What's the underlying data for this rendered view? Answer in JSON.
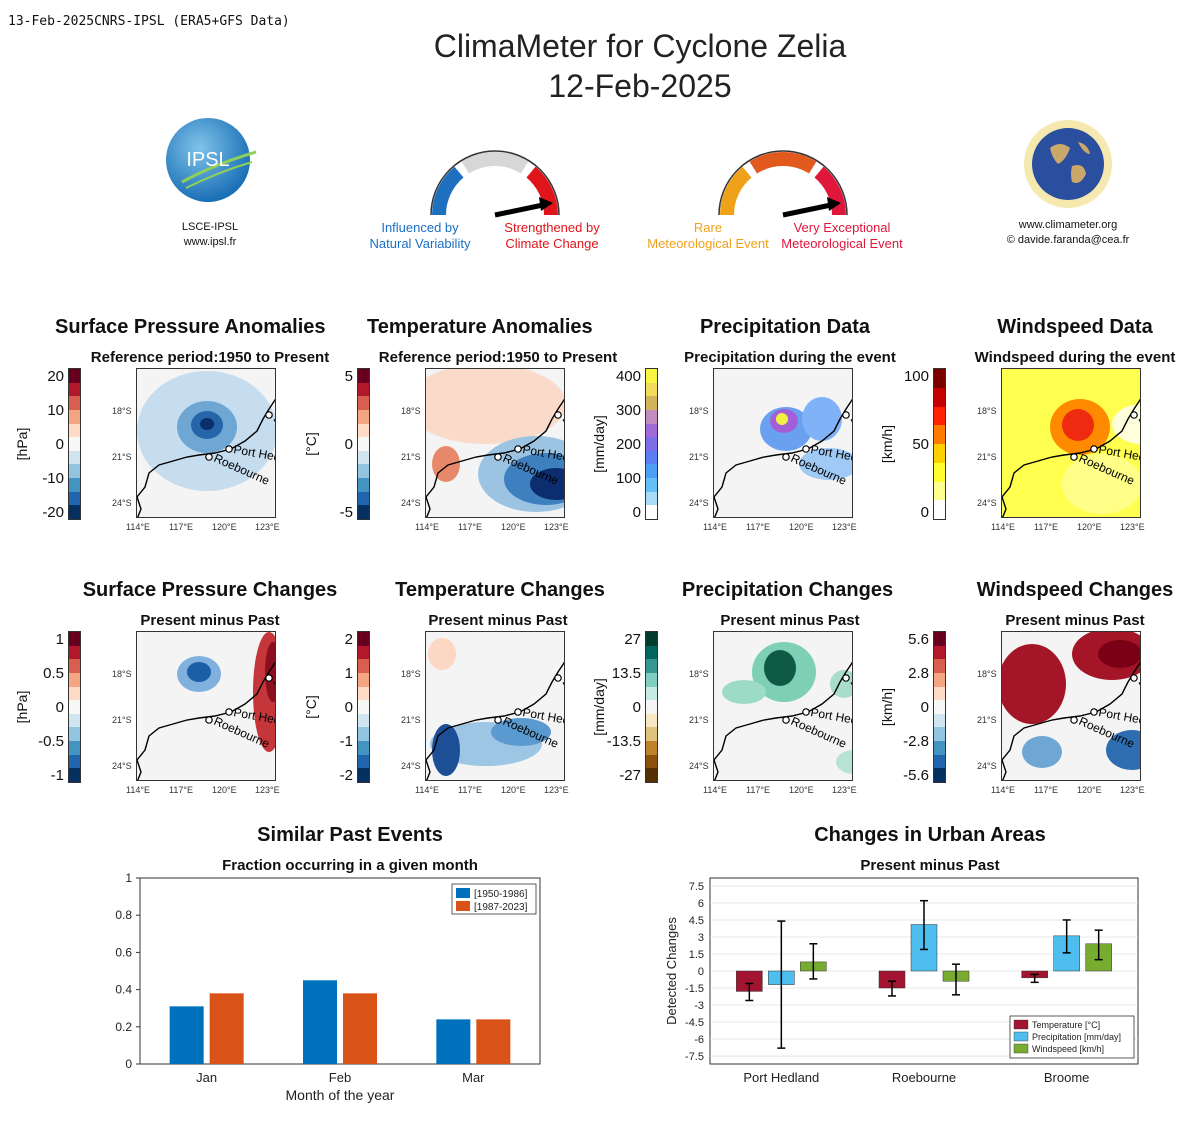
{
  "header_note": "13-Feb-2025CNRS-IPSL (ERA5+GFS Data)",
  "title_line1": "ClimaMeter for Cyclone Zelia",
  "title_line2": "12-Feb-2025",
  "logo_left": {
    "text": "IPSL",
    "caption1": "LSCE-IPSL",
    "caption2": "www.ipsl.fr"
  },
  "logo_right": {
    "caption1": "www.climameter.org",
    "caption2": "© davide.faranda@cea.fr"
  },
  "gauge1": {
    "left_label_1": "Influenced by",
    "left_label_2": "Natural Variability",
    "right_label_1": "Strengthened by",
    "right_label_2": "Climate Change",
    "colors": [
      "#1f6fbf",
      "#d7d7d7",
      "#e0141b"
    ]
  },
  "gauge2": {
    "left_label_1": "Rare",
    "left_label_2": "Meteorological Event",
    "right_label_1": "Very Exceptional",
    "right_label_2": "Meteorological Event",
    "colors": [
      "#f0a11a",
      "#e2591d",
      "#e0163b"
    ]
  },
  "map_ticks": {
    "lat": [
      "18°S",
      "21°S",
      "24°S"
    ],
    "lon": [
      "114°E",
      "117°E",
      "120°E",
      "123°E"
    ],
    "cities": [
      "Broome",
      "Port Hedland",
      "Roebourne"
    ]
  },
  "row1": [
    {
      "title": "Surface Pressure Anomalies",
      "subtitle": "Reference period:1950 to Present",
      "unit": "[hPa]",
      "ticks": [
        "20",
        "10",
        "0",
        "-10",
        "-20"
      ]
    },
    {
      "title": "Temperature Anomalies",
      "subtitle": "Reference period:1950 to Present",
      "unit": "[°C]",
      "ticks": [
        "5",
        "0",
        "-5"
      ]
    },
    {
      "title": "Precipitation Data",
      "subtitle": "Precipitation during the event",
      "unit": "[mm/day]",
      "ticks": [
        "400",
        "300",
        "200",
        "100",
        "0"
      ]
    },
    {
      "title": "Windspeed Data",
      "subtitle": "Windspeed during the event",
      "unit": "[km/h]",
      "ticks": [
        "100",
        "50",
        "0"
      ]
    }
  ],
  "row2": [
    {
      "title": "Surface Pressure Changes",
      "subtitle": "Present minus Past",
      "unit": "[hPa]",
      "ticks": [
        "1",
        "0.5",
        "0",
        "-0.5",
        "-1"
      ]
    },
    {
      "title": "Temperature Changes",
      "subtitle": "Present minus Past",
      "unit": "[°C]",
      "ticks": [
        "2",
        "1",
        "0",
        "-1",
        "-2"
      ]
    },
    {
      "title": "Precipitation Changes",
      "subtitle": "Present minus Past",
      "unit": "[mm/day]",
      "ticks": [
        "27",
        "13.5",
        "0",
        "-13.5",
        "-27"
      ]
    },
    {
      "title": "Windspeed Changes",
      "subtitle": "Present minus Past",
      "unit": "[km/h]",
      "ticks": [
        "5.6",
        "2.8",
        "0",
        "-2.8",
        "-5.6"
      ]
    }
  ],
  "chart_data": [
    {
      "type": "bar",
      "title": "Similar Past Events",
      "subtitle": "Fraction occurring in a given month",
      "xlabel": "Month of the year",
      "ylabel": "",
      "categories": [
        "Jan",
        "Feb",
        "Mar"
      ],
      "series": [
        {
          "name": "[1950-1986]",
          "values": [
            0.31,
            0.45,
            0.24
          ],
          "color": "#0072bd"
        },
        {
          "name": "[1987-2023]",
          "values": [
            0.38,
            0.38,
            0.24
          ],
          "color": "#d95319"
        }
      ],
      "ylim": [
        0,
        1
      ],
      "yticks": [
        "0",
        "0.2",
        "0.4",
        "0.6",
        "0.8",
        "1"
      ],
      "legend": "top-right",
      "grid": false
    },
    {
      "type": "bar",
      "title": "Changes in Urban Areas",
      "subtitle": "Present minus Past",
      "xlabel": "",
      "ylabel": "Detected Changes",
      "categories": [
        "Port Hedland",
        "Roebourne",
        "Broome"
      ],
      "series": [
        {
          "name": "Temperature [°C]",
          "values": [
            -1.8,
            -1.5,
            -0.6
          ],
          "err_low": [
            -2.6,
            -2.2,
            -1.0
          ],
          "err_high": [
            -1.1,
            -0.9,
            -0.3
          ],
          "color": "#a2142f"
        },
        {
          "name": "Precipitation [mm/day]",
          "values": [
            -1.2,
            4.1,
            3.1
          ],
          "err_low": [
            -6.8,
            1.9,
            1.6
          ],
          "err_high": [
            4.4,
            6.2,
            4.5
          ],
          "color": "#4dbeee"
        },
        {
          "name": "Windspeed [km/h]",
          "values": [
            0.8,
            -0.9,
            2.4
          ],
          "err_low": [
            -0.7,
            -2.1,
            1.0
          ],
          "err_high": [
            2.4,
            0.6,
            3.6
          ],
          "color": "#77ac30"
        }
      ],
      "ylim": [
        -8.2,
        8.2
      ],
      "yticks": [
        "7.5",
        "6",
        "4.5",
        "3",
        "1.5",
        "0",
        "-1.5",
        "-3",
        "-4.5",
        "-6",
        "-7.5"
      ],
      "legend": "bottom-right",
      "grid": true
    }
  ]
}
